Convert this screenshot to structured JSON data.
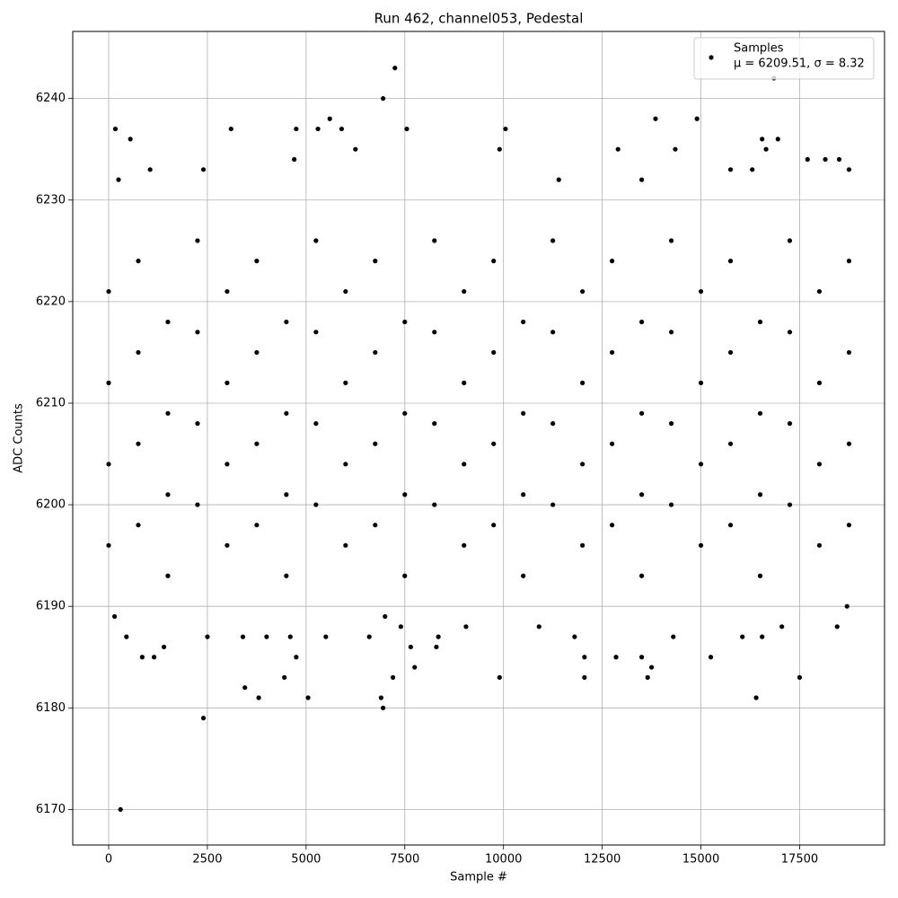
{
  "chart_data": {
    "type": "scatter",
    "title": "Run 462, channel053, Pedestal",
    "x_label": "Sample #",
    "y_label": "ADC Counts",
    "xlim": [
      -910,
      19650
    ],
    "ylim": [
      6166.5,
      6246.6
    ],
    "xticks": [
      0,
      2500,
      5000,
      7500,
      10000,
      12500,
      15000,
      17500
    ],
    "yticks": [
      6170,
      6180,
      6190,
      6200,
      6210,
      6220,
      6230,
      6240
    ],
    "grid": true,
    "legend": "upper right",
    "legend_note": "μ = 6209.51, σ = 8.32",
    "series": [
      {
        "name": "Samples",
        "color": "#000000",
        "x": [
          0,
          0,
          0,
          0,
          750,
          750,
          750,
          750,
          1500,
          1500,
          1500,
          1500,
          2250,
          2250,
          2250,
          2250,
          3000,
          3000,
          3000,
          3000,
          3750,
          3750,
          3750,
          3750,
          4500,
          4500,
          4500,
          4500,
          5250,
          5250,
          5250,
          5250,
          6000,
          6000,
          6000,
          6000,
          6750,
          6750,
          6750,
          6750,
          7500,
          7500,
          7500,
          7500,
          8250,
          8250,
          8250,
          8250,
          9000,
          9000,
          9000,
          9000,
          9750,
          9750,
          9750,
          9750,
          10500,
          10500,
          10500,
          10500,
          11250,
          11250,
          11250,
          11250,
          12000,
          12000,
          12000,
          12000,
          12750,
          12750,
          12750,
          12750,
          13500,
          13500,
          13500,
          13500,
          14250,
          14250,
          14250,
          14250,
          15000,
          15000,
          15000,
          15000,
          15750,
          15750,
          15750,
          15750,
          16500,
          16500,
          16500,
          16500,
          17250,
          17250,
          17250,
          17250,
          18000,
          18000,
          18000,
          18000,
          18750,
          18750,
          18750,
          18750,
          300,
          2400,
          3800,
          3450,
          5050,
          6900,
          6950,
          7200,
          4450,
          9900,
          12050,
          13650,
          16400,
          17500,
          7250,
          6950,
          16850,
          170,
          550,
          3100,
          4750,
          5300,
          5600,
          5900,
          7550,
          10050,
          13850,
          14900,
          9900,
          12900,
          14350,
          16650,
          16950,
          16550,
          250,
          6250,
          4700,
          17700,
          18150,
          18500,
          18750,
          15750,
          16300,
          1050,
          2400,
          13500,
          11400,
          150,
          450,
          850,
          1150,
          1400,
          2500,
          3400,
          4000,
          4600,
          4750,
          5500,
          6600,
          7000,
          7400,
          7650,
          7750,
          8300,
          8350,
          9050,
          10900,
          11800,
          12050,
          12850,
          13500,
          13750,
          14300,
          15250,
          16050,
          16550,
          17050,
          18450,
          18700
        ],
        "values": [
          6196,
          6204,
          6212,
          6221,
          6198,
          6206,
          6215,
          6224,
          6193,
          6201,
          6209,
          6218,
          6200,
          6208,
          6217,
          6226,
          6196,
          6204,
          6212,
          6221,
          6198,
          6206,
          6215,
          6224,
          6193,
          6201,
          6209,
          6218,
          6200,
          6208,
          6217,
          6226,
          6196,
          6204,
          6212,
          6221,
          6198,
          6206,
          6215,
          6224,
          6193,
          6201,
          6209,
          6218,
          6200,
          6208,
          6217,
          6226,
          6196,
          6204,
          6212,
          6221,
          6198,
          6206,
          6215,
          6224,
          6193,
          6201,
          6209,
          6218,
          6200,
          6208,
          6217,
          6226,
          6196,
          6204,
          6212,
          6221,
          6198,
          6206,
          6215,
          6224,
          6193,
          6201,
          6209,
          6218,
          6200,
          6208,
          6217,
          6226,
          6196,
          6204,
          6212,
          6221,
          6198,
          6206,
          6215,
          6224,
          6193,
          6201,
          6209,
          6218,
          6200,
          6208,
          6217,
          6226,
          6196,
          6204,
          6212,
          6221,
          6198,
          6206,
          6215,
          6224,
          6170,
          6179,
          6181,
          6182,
          6181,
          6181,
          6180,
          6183,
          6183,
          6183,
          6183,
          6183,
          6181,
          6183,
          6243,
          6240,
          6242,
          6237,
          6236,
          6237,
          6237,
          6237,
          6238,
          6237,
          6237,
          6237,
          6238,
          6238,
          6235,
          6235,
          6235,
          6235,
          6236,
          6236,
          6232,
          6235,
          6234,
          6234,
          6234,
          6234,
          6233,
          6233,
          6233,
          6233,
          6233,
          6232,
          6232,
          6189,
          6187,
          6185,
          6185,
          6186,
          6187,
          6187,
          6187,
          6187,
          6185,
          6187,
          6187,
          6189,
          6188,
          6186,
          6184,
          6186,
          6187,
          6188,
          6188,
          6187,
          6185,
          6185,
          6185,
          6184,
          6187,
          6185,
          6187,
          6187,
          6188,
          6188,
          6190
        ]
      }
    ]
  }
}
